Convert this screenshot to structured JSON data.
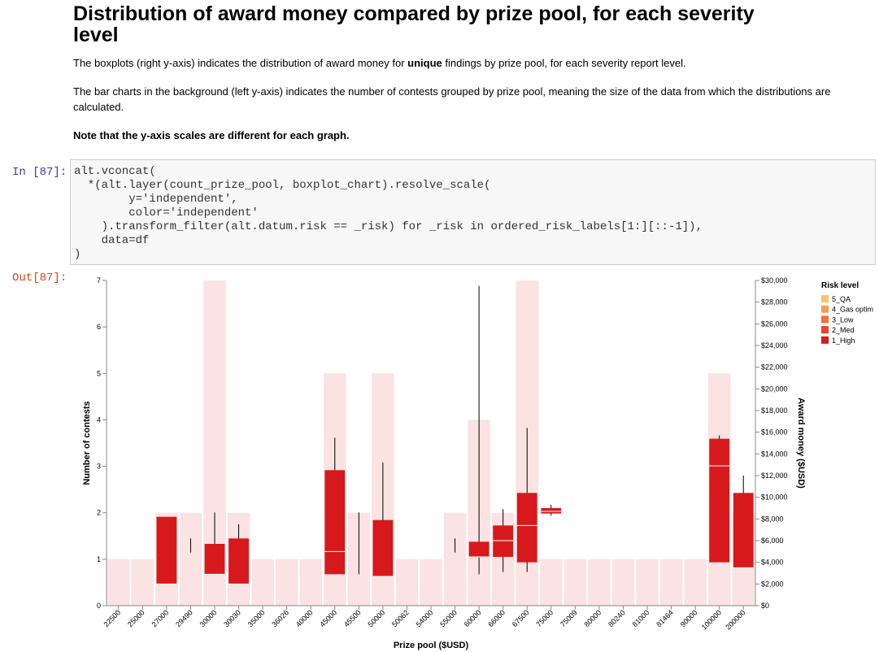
{
  "heading": "Distribution of award money compared by prize pool, for each severity level",
  "paragraphs": {
    "p1_before": "The boxplots (right y-axis) indicates the distribution of award money for ",
    "p1_bold": "unique",
    "p1_after": " findings by prize pool, for each severity report level.",
    "p2": "The bar charts in the background (left y-axis) indicates the number of contests grouped by prize pool, meaning the size of the data from which the distributions are calculated.",
    "note": "Note that the y-axis scales are different for each graph."
  },
  "cell": {
    "in_prompt": "In [87]:",
    "out_prompt": "Out[87]:",
    "code": "alt.vconcat(\n  *(alt.layer(count_prize_pool, boxplot_chart).resolve_scale(\n        y='independent',\n        color='independent'\n    ).transform_filter(alt.datum.risk == _risk) for _risk in ordered_risk_labels[1:][::-1]),\n    data=df\n)"
  },
  "chart_data": {
    "x_label": "Prize pool ($USD)",
    "y_label": "Number of contests",
    "y2_label": "Award money ($USD)",
    "categories": [
      "22500",
      "25000",
      "27000",
      "29490",
      "30000",
      "30030",
      "35000",
      "36026",
      "40000",
      "45000",
      "45500",
      "50000",
      "50062",
      "54000",
      "55000",
      "60000",
      "66000",
      "67500",
      "75000",
      "75009",
      "80000",
      "80240",
      "81000",
      "81464",
      "90000",
      "100000",
      "200000"
    ],
    "ylim": [
      0,
      7
    ],
    "yticks": [
      0,
      1,
      2,
      3,
      4,
      5,
      6,
      7
    ],
    "y2lim": [
      0,
      30000
    ],
    "y2ticks": [
      {
        "value": 0,
        "label": "$0"
      },
      {
        "value": 2000,
        "label": "$2,000"
      },
      {
        "value": 4000,
        "label": "$4,000"
      },
      {
        "value": 6000,
        "label": "$6,000"
      },
      {
        "value": 8000,
        "label": "$8,000"
      },
      {
        "value": 10000,
        "label": "$10,000"
      },
      {
        "value": 12000,
        "label": "$12,000"
      },
      {
        "value": 14000,
        "label": "$14,000"
      },
      {
        "value": 16000,
        "label": "$16,000"
      },
      {
        "value": 18000,
        "label": "$18,000"
      },
      {
        "value": 20000,
        "label": "$20,000"
      },
      {
        "value": 22000,
        "label": "$22,000"
      },
      {
        "value": 24000,
        "label": "$24,000"
      },
      {
        "value": 26000,
        "label": "$26,000"
      },
      {
        "value": 28000,
        "label": "$28,000"
      },
      {
        "value": 30000,
        "label": "$30,000"
      }
    ],
    "layers": [
      {
        "type": "bar",
        "color": "#fbe3e3",
        "values": [
          1,
          1,
          2,
          2,
          7,
          2,
          1,
          1,
          1,
          5,
          2,
          5,
          1,
          1,
          2,
          4,
          2,
          7,
          1,
          1,
          1,
          1,
          1,
          1,
          1,
          5,
          2
        ]
      },
      {
        "type": "boxplot",
        "axis": "y2",
        "color": "#d7191c",
        "median_color": "#ffffff",
        "whisker_color": "#000000",
        "min": [
          null,
          null,
          2000,
          4900,
          2900,
          2000,
          null,
          null,
          null,
          2900,
          2900,
          2700,
          null,
          null,
          4900,
          2900,
          3100,
          3100,
          8300,
          null,
          null,
          null,
          null,
          null,
          null,
          4000,
          3500
        ],
        "q1": [
          null,
          null,
          2000,
          null,
          2900,
          2000,
          null,
          null,
          null,
          2900,
          null,
          2700,
          null,
          null,
          null,
          4500,
          4500,
          4000,
          8500,
          null,
          null,
          null,
          null,
          null,
          null,
          4000,
          3500
        ],
        "median": [
          null,
          null,
          2000,
          null,
          2900,
          2000,
          null,
          null,
          null,
          5000,
          null,
          2700,
          null,
          null,
          null,
          4500,
          6000,
          7400,
          8700,
          null,
          null,
          null,
          null,
          null,
          null,
          12900,
          3500
        ],
        "q3": [
          null,
          null,
          8200,
          null,
          5700,
          6200,
          null,
          null,
          null,
          12500,
          null,
          7900,
          null,
          null,
          null,
          5900,
          7400,
          10400,
          9000,
          null,
          null,
          null,
          null,
          null,
          null,
          15400,
          10400
        ],
        "max": [
          null,
          null,
          7500,
          6200,
          8600,
          7500,
          null,
          null,
          null,
          15500,
          8600,
          13200,
          null,
          null,
          6200,
          29500,
          8900,
          16400,
          9300,
          null,
          null,
          null,
          null,
          null,
          null,
          15700,
          12000
        ]
      }
    ],
    "legend": {
      "title": "Risk level",
      "position": "right",
      "entries": [
        {
          "name": "5_QA",
          "color": "#fdc36b"
        },
        {
          "name": "4_Gas optim",
          "color": "#f99d4c"
        },
        {
          "name": "3_Low",
          "color": "#f46d3a"
        },
        {
          "name": "2_Med",
          "color": "#e8432e"
        },
        {
          "name": "1_High",
          "color": "#d7191c"
        }
      ]
    }
  }
}
